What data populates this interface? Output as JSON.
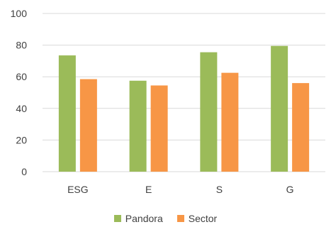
{
  "chart_data": {
    "type": "bar",
    "categories": [
      "ESG",
      "E",
      "S",
      "G"
    ],
    "series": [
      {
        "name": "Pandora",
        "values": [
          73.5,
          57.5,
          75.5,
          79.5
        ],
        "color": "#9bbb59"
      },
      {
        "name": "Sector",
        "values": [
          58.5,
          54.5,
          62.5,
          56
        ],
        "color": "#f79646"
      }
    ],
    "ylim": [
      0,
      100
    ],
    "yticks": [
      0,
      20,
      40,
      60,
      80,
      100
    ],
    "grid": true,
    "legend_position": "bottom"
  }
}
